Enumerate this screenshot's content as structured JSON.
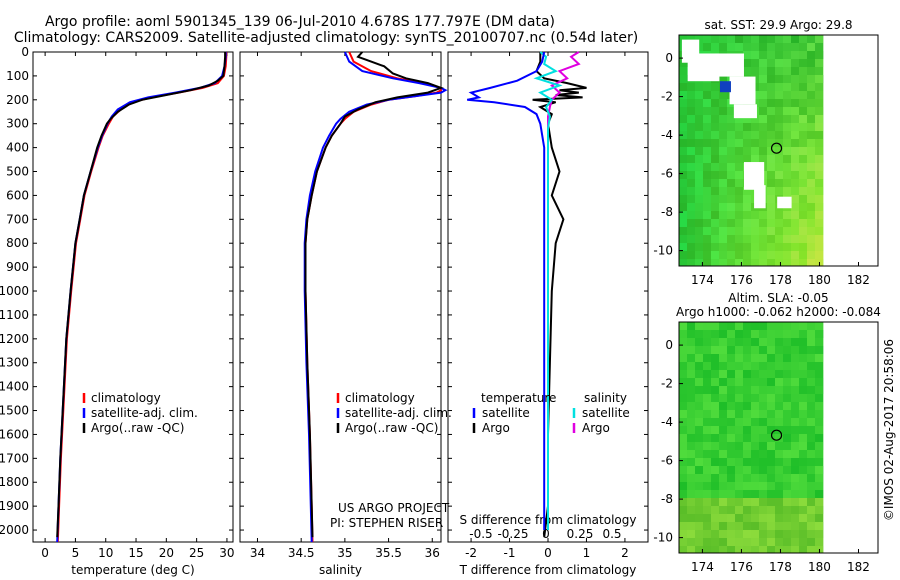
{
  "header": {
    "title_line1": "Argo profile: aoml 5901345_139 06-Jul-2010 4.678S 177.797E (DM data)",
    "title_line2": "Climatology: CARS2009. Satellite-adjusted climatology: synTS_20100707.nc (0.54d later)"
  },
  "footer": {
    "credit": "©IMOS 02-Aug-2017 20:58:06",
    "project_line1": "US ARGO PROJECT",
    "project_line2": "PI: STEPHEN RISER"
  },
  "colors": {
    "climatology": "#ff0000",
    "satellite": "#0000ff",
    "argo": "#000000",
    "sal_satellite": "#00e0e0",
    "sal_argo": "#e000e0"
  },
  "chart_data": [
    {
      "type": "line",
      "xlabel": "temperature (deg C)",
      "ylabel": "",
      "xlim": [
        -2,
        31
      ],
      "ylim": [
        2050,
        0
      ],
      "xticks": [
        0,
        5,
        10,
        15,
        20,
        25,
        30
      ],
      "yticks": [
        0,
        100,
        200,
        300,
        400,
        500,
        600,
        700,
        800,
        900,
        1000,
        1100,
        1200,
        1300,
        1400,
        1500,
        1600,
        1700,
        1800,
        1900,
        2000
      ],
      "legend": [
        "climatology",
        "satellite-adj. clim.",
        "Argo(..raw -QC)"
      ],
      "legend_loc": "lower-center",
      "series": [
        {
          "name": "climatology",
          "depth": [
            0,
            20,
            60,
            100,
            130,
            150,
            170,
            190,
            210,
            240,
            270,
            300,
            350,
            400,
            500,
            600,
            700,
            800,
            900,
            1000,
            1200,
            1500,
            1700,
            1900,
            2050
          ],
          "values": [
            29.9,
            29.9,
            29.8,
            29.5,
            28.5,
            26.0,
            22.0,
            17.5,
            14.5,
            12.5,
            11.2,
            10.5,
            9.5,
            8.8,
            7.6,
            6.5,
            5.8,
            5.1,
            4.7,
            4.3,
            3.6,
            3.0,
            2.6,
            2.3,
            2.1
          ]
        },
        {
          "name": "satellite-adj. clim.",
          "depth": [
            0,
            20,
            60,
            100,
            130,
            150,
            170,
            190,
            210,
            240,
            270,
            300,
            350,
            400,
            500,
            600,
            700,
            800,
            900,
            1000,
            1200,
            1500,
            1700,
            1900,
            2050
          ],
          "values": [
            29.8,
            29.8,
            29.6,
            29.2,
            28.0,
            25.5,
            21.5,
            17.0,
            14.0,
            12.0,
            11.0,
            10.3,
            9.4,
            8.7,
            7.5,
            6.4,
            5.7,
            5.0,
            4.6,
            4.2,
            3.5,
            2.9,
            2.5,
            2.2,
            2.0
          ]
        },
        {
          "name": "Argo(..raw -QC)",
          "depth": [
            0,
            20,
            60,
            100,
            120,
            140,
            160,
            180,
            200,
            220,
            250,
            280,
            300,
            350,
            400,
            500,
            600,
            700,
            800,
            900,
            1000,
            1200,
            1500,
            1700,
            1900,
            2030
          ],
          "values": [
            29.7,
            29.7,
            29.6,
            29.4,
            28.5,
            27.0,
            24.0,
            20.0,
            16.0,
            13.8,
            12.0,
            10.8,
            10.2,
            9.3,
            8.6,
            7.5,
            6.4,
            5.7,
            5.0,
            4.6,
            4.2,
            3.5,
            2.9,
            2.5,
            2.2,
            2.0
          ]
        }
      ]
    },
    {
      "type": "line",
      "xlabel": "salinity",
      "ylabel": "",
      "xlim": [
        33.8,
        36.1
      ],
      "ylim": [
        2050,
        0
      ],
      "xticks": [
        34,
        34.5,
        35,
        35.5,
        36
      ],
      "legend": [
        "climatology",
        "satellite-adj. clim.",
        "Argo(..raw -QC)"
      ],
      "legend_loc": "lower-center",
      "series": [
        {
          "name": "climatology",
          "depth": [
            0,
            40,
            80,
            110,
            130,
            150,
            160,
            170,
            185,
            200,
            220,
            250,
            280,
            300,
            350,
            400,
            500,
            600,
            700,
            800,
            1000,
            1300,
            1600,
            1900,
            2050
          ],
          "values": [
            35.05,
            35.1,
            35.3,
            35.6,
            35.9,
            36.1,
            36.1,
            36.05,
            35.8,
            35.5,
            35.3,
            35.1,
            35.0,
            34.95,
            34.85,
            34.78,
            34.68,
            34.62,
            34.57,
            34.55,
            34.55,
            34.57,
            34.6,
            34.62,
            34.63
          ]
        },
        {
          "name": "satellite-adj. clim.",
          "depth": [
            0,
            40,
            80,
            110,
            130,
            150,
            160,
            170,
            185,
            200,
            220,
            250,
            280,
            300,
            350,
            400,
            500,
            600,
            700,
            800,
            1000,
            1300,
            1600,
            1900,
            2050
          ],
          "values": [
            35.0,
            35.05,
            35.2,
            35.55,
            35.85,
            36.1,
            36.15,
            36.1,
            35.8,
            35.5,
            35.25,
            35.05,
            34.95,
            34.9,
            34.82,
            34.75,
            34.66,
            34.6,
            34.56,
            34.54,
            34.54,
            34.56,
            34.59,
            34.61,
            34.62
          ]
        },
        {
          "name": "Argo(..raw -QC)",
          "depth": [
            0,
            20,
            40,
            60,
            90,
            110,
            130,
            150,
            170,
            190,
            210,
            240,
            270,
            300,
            350,
            400,
            500,
            600,
            700,
            800,
            1000,
            1300,
            1600,
            1900,
            2030
          ],
          "values": [
            35.2,
            35.15,
            35.3,
            35.45,
            35.55,
            35.7,
            35.95,
            36.1,
            35.95,
            35.6,
            35.35,
            35.15,
            35.0,
            34.95,
            34.85,
            34.78,
            34.68,
            34.62,
            34.57,
            34.55,
            34.55,
            34.57,
            34.6,
            34.62,
            34.63
          ]
        }
      ],
      "annotations": [
        "US ARGO PROJECT",
        "PI: STEPHEN RISER"
      ]
    },
    {
      "type": "line",
      "xlabel": "T difference from climatology",
      "top_label": "S difference from climatology",
      "xlim": [
        -2.6,
        2.6
      ],
      "ylim": [
        2050,
        0
      ],
      "xticks": [
        -2,
        -1,
        0,
        1,
        2
      ],
      "xticklabels": [
        "-2",
        "-1",
        "0",
        "1",
        "2"
      ],
      "top_ticklabels": [
        "-0.5",
        "-0.25",
        "0",
        "0.25",
        "0.5"
      ],
      "legend": [
        "temperature",
        "satellite",
        "Argo",
        "salinity",
        "satellite",
        "Argo"
      ],
      "legend_loc": "lower-center",
      "series": [
        {
          "name": "temperature satellite",
          "depth": [
            0,
            40,
            80,
            120,
            150,
            170,
            190,
            200,
            210,
            230,
            260,
            300,
            400,
            600,
            800,
            1000,
            1500,
            2000
          ],
          "values": [
            -0.1,
            -0.15,
            -0.3,
            -0.8,
            -1.5,
            -2.0,
            -1.8,
            -2.1,
            -1.4,
            -0.6,
            -0.3,
            -0.2,
            -0.1,
            -0.1,
            -0.1,
            -0.1,
            -0.1,
            -0.1
          ]
        },
        {
          "name": "temperature Argo",
          "depth": [
            0,
            40,
            80,
            110,
            130,
            150,
            160,
            170,
            180,
            190,
            200,
            210,
            230,
            260,
            300,
            400,
            500,
            600,
            700,
            800,
            1000,
            1300,
            1600,
            1900,
            2030
          ],
          "values": [
            -0.2,
            -0.2,
            -0.3,
            -0.1,
            0.5,
            1.0,
            0.3,
            0.8,
            0.2,
            0.9,
            -0.4,
            0.2,
            -0.2,
            0.1,
            0.0,
            0.1,
            0.3,
            0.1,
            0.4,
            0.2,
            0.1,
            0.05,
            0.0,
            0.0,
            -0.1
          ]
        },
        {
          "name": "salinity satellite",
          "depth": [
            0,
            20,
            50,
            80,
            110,
            140,
            170,
            200,
            230,
            270,
            320,
            400,
            600,
            800,
            1000,
            1500,
            2000
          ],
          "values": [
            -0.2,
            -0.05,
            -0.1,
            0.2,
            -0.3,
            0.3,
            -0.2,
            0.1,
            -0.05,
            0.05,
            0.0,
            0.0,
            0.0,
            0.0,
            0.0,
            0.0,
            0.0
          ]
        },
        {
          "name": "salinity Argo",
          "depth": [
            0,
            20,
            50,
            80,
            110,
            140,
            170,
            200,
            230,
            270,
            320,
            400,
            600,
            800,
            1000,
            1500,
            2000
          ],
          "values": [
            0.8,
            0.6,
            0.8,
            0.3,
            0.5,
            0.1,
            0.3,
            0.1,
            0.05,
            0.0,
            0.0,
            0.0,
            0.0,
            0.0,
            0.0,
            0.0,
            0.0
          ]
        }
      ]
    },
    {
      "type": "heatmap",
      "title": "sat. SST: 29.9 Argo: 29.8",
      "xlim": [
        172.8,
        183
      ],
      "ylim": [
        -10.8,
        1.2
      ],
      "xticks": [
        174,
        176,
        178,
        180,
        182
      ],
      "yticks": [
        0,
        -2,
        -4,
        -6,
        -8,
        -10
      ],
      "data_extent_x": [
        172.8,
        180.2
      ],
      "marker": {
        "lon": 177.8,
        "lat": -4.68
      }
    },
    {
      "type": "heatmap",
      "title_line1": "Altim. SLA: -0.05",
      "title_line2": "Argo h1000: -0.062 h2000: -0.084",
      "xlim": [
        172.8,
        183
      ],
      "ylim": [
        -10.8,
        1.2
      ],
      "xticks": [
        174,
        176,
        178,
        180,
        182
      ],
      "yticks": [
        0,
        -2,
        -4,
        -6,
        -8,
        -10
      ],
      "data_extent_x": [
        172.8,
        180.2
      ],
      "marker": {
        "lon": 177.8,
        "lat": -4.68
      }
    }
  ]
}
